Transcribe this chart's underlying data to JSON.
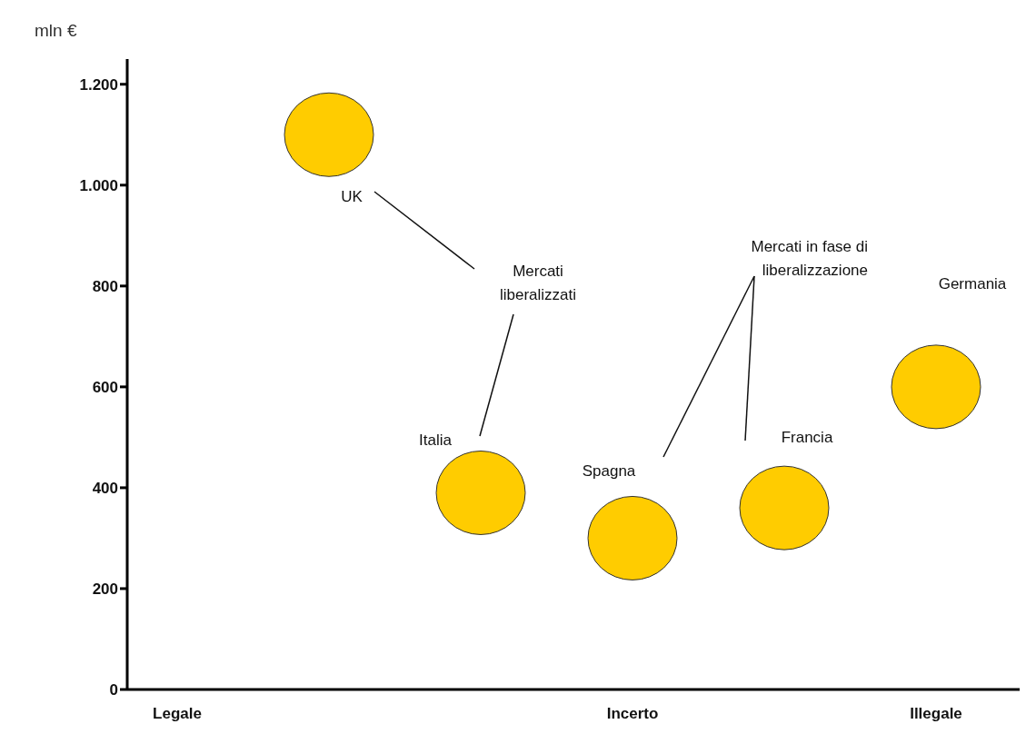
{
  "chart_data": {
    "type": "scatter",
    "ylabel": "mln €",
    "categories": [
      "Legale",
      null,
      null,
      "Incerto",
      null,
      "Illegale"
    ],
    "series": [
      {
        "color": "#ffcc00",
        "values": [
          null,
          1100,
          390,
          300,
          360,
          600
        ]
      }
    ],
    "ylim": [
      0,
      1250
    ],
    "yticks": [
      {
        "value": 0,
        "label": "0"
      },
      {
        "value": 200,
        "label": "200"
      },
      {
        "value": 400,
        "label": "400"
      },
      {
        "value": 600,
        "label": "600"
      },
      {
        "value": 800,
        "label": "800"
      },
      {
        "value": 1000,
        "label": "1.000"
      },
      {
        "value": 1200,
        "label": "1.200"
      }
    ],
    "marker": "circle",
    "annotations": [
      "UK",
      "Italia",
      "Spagna",
      "Francia",
      "Germania",
      "Mercati liberalizzati",
      "Mercati in fase di liberalizzazione"
    ]
  }
}
